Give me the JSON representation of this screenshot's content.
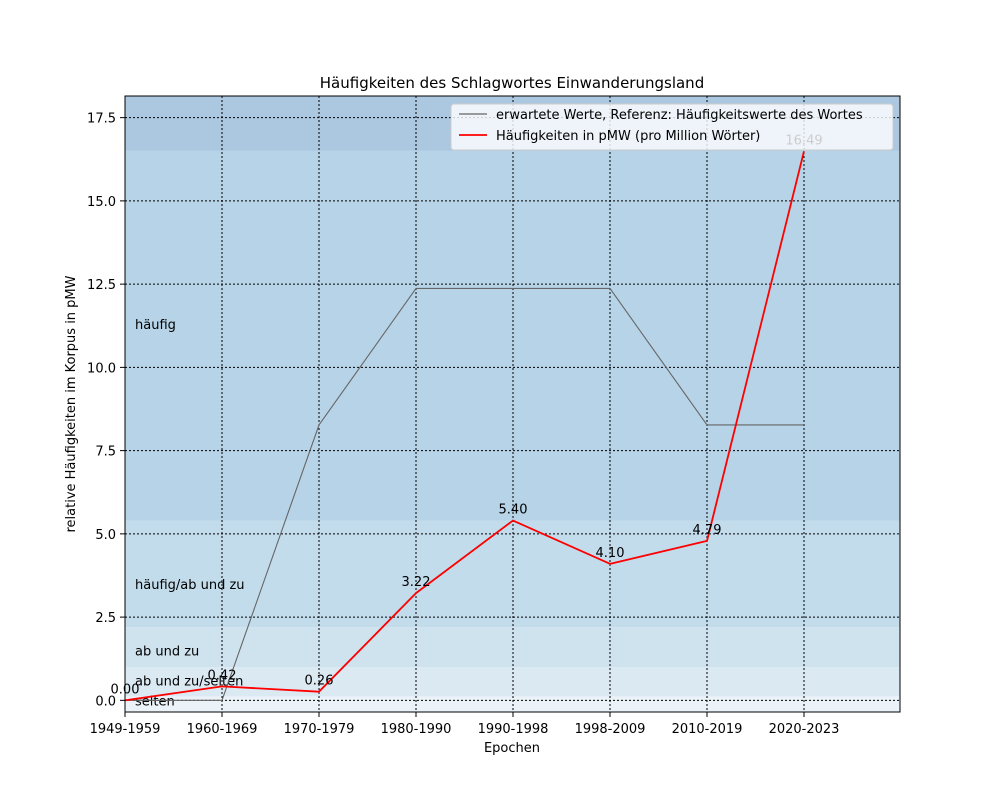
{
  "chart_data": {
    "type": "line",
    "title": "Häufigkeiten des Schlagwortes Einwanderungsland",
    "xlabel": "Epochen",
    "ylabel": "relative Häufigkeiten im Korpus in pMW",
    "categories": [
      "1949-1959",
      "1960-1969",
      "1970-1979",
      "1980-1990",
      "1990-1998",
      "1998-2009",
      "2010-2019",
      "2020-2023"
    ],
    "ylim": [
      -0.35,
      18.15
    ],
    "yticks": [
      0.0,
      2.5,
      5.0,
      7.5,
      10.0,
      12.5,
      15.0,
      17.5
    ],
    "grid": true,
    "legend_position": "top-right",
    "bands": [
      {
        "label": "",
        "from": -0.35,
        "to": 0.12,
        "color": "#ebf3f9"
      },
      {
        "label": "selten",
        "from": 0.12,
        "to": 1.0,
        "color": "#dbe9f3"
      },
      {
        "label": "ab und zu/selten",
        "from": 1.0,
        "to": 2.2,
        "color": "#cfe3ef"
      },
      {
        "label": "ab und zu",
        "from": 2.2,
        "to": 5.4,
        "color": "#c2dcec"
      },
      {
        "label": "häufig/ab und zu",
        "from": 5.4,
        "to": 16.5,
        "color": "#b6d3e7"
      },
      {
        "label": "häufig",
        "from": 16.5,
        "to": 18.15,
        "color": "#acc8e1"
      }
    ],
    "band_label_colors": [
      "#d6e8f4",
      "#a9cde6",
      "#5f9fd0",
      "#3a86c8",
      "#2878c0"
    ],
    "band_label_texts": [
      "selten",
      "ab und zu/selten",
      "ab und zu",
      "häufig/ab und zu",
      "häufig"
    ],
    "series": [
      {
        "name": "erwartete Werte, Referenz: Häufigkeitswerte des Wortes",
        "values": [
          0.0,
          0.0,
          8.27,
          12.37,
          12.37,
          12.37,
          8.27,
          8.27
        ],
        "color": "#666666"
      },
      {
        "name": "Häufigkeiten in pMW (pro Million Wörter)",
        "values": [
          0.0,
          0.42,
          0.26,
          3.22,
          5.4,
          4.1,
          4.79,
          16.49
        ],
        "labels": [
          "0.00",
          "0.42",
          "0.26",
          "3.22",
          "5.40",
          "4.10",
          "4.79",
          "16.49"
        ],
        "color": "#ff0000"
      }
    ]
  }
}
